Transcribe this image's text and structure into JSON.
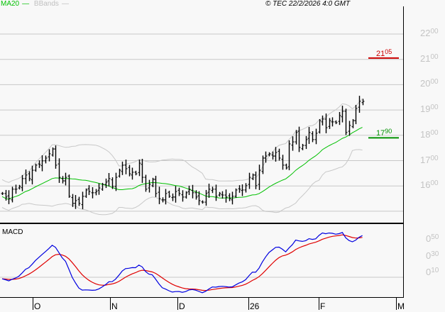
{
  "legend": {
    "ma20": "MA20",
    "bbands": "BBands"
  },
  "copyright": "© TEC 22/2/2026 4:0 GMT",
  "macd_label": "MACD",
  "colors": {
    "bars": "#000000",
    "ma20": "#00c000",
    "bbands": "#c8c8c8",
    "macd": "#0000e0",
    "signal": "#e00000",
    "resistance": "#cc0000",
    "support": "#009000",
    "grid": "#c8c8c8"
  },
  "chart_data": {
    "type": "line",
    "title": "",
    "price_axis": {
      "ylim": [
        14.7,
        22.7
      ],
      "ticks": [
        {
          "int": "22",
          "dec": "00",
          "v": 22
        },
        {
          "int": "21",
          "dec": "00",
          "v": 21
        },
        {
          "int": "20",
          "dec": "00",
          "v": 20
        },
        {
          "int": "19",
          "dec": "00",
          "v": 19
        },
        {
          "int": "18",
          "dec": "00",
          "v": 18
        },
        {
          "int": "17",
          "dec": "00",
          "v": 17
        },
        {
          "int": "16",
          "dec": "00",
          "v": 16
        }
      ],
      "grid": true
    },
    "macd_axis": {
      "ticks": [
        {
          "int": "0",
          "dec": "50",
          "v": 0.5
        },
        {
          "int": "0",
          "dec": "30",
          "v": 0.3
        },
        {
          "int": "0",
          "dec": "10",
          "v": 0.1
        }
      ]
    },
    "x_ticks": [
      "O",
      "N",
      "D",
      "26",
      "F",
      "M"
    ],
    "levels": [
      {
        "name": "resistance",
        "value": 21.05,
        "int": "21",
        "dec": "05"
      },
      {
        "name": "support",
        "value": 17.9,
        "int": "17",
        "dec": "90"
      }
    ],
    "series": [
      {
        "name": "close",
        "values": [
          15.7,
          15.56,
          15.5,
          15.87,
          15.87,
          15.98,
          16.29,
          16.43,
          16.29,
          16.62,
          16.82,
          16.85,
          16.99,
          17.1,
          17.27,
          17.46,
          16.82,
          16.34,
          16.2,
          16.34,
          15.59,
          15.31,
          15.42,
          15.31,
          15.59,
          15.84,
          15.78,
          15.73,
          15.78,
          15.92,
          16.06,
          16.15,
          16.29,
          15.98,
          16.34,
          16.62,
          16.82,
          16.68,
          16.48,
          16.54,
          16.48,
          16.9,
          16.34,
          15.87,
          16.06,
          16.26,
          15.7,
          15.5,
          15.45,
          15.7,
          15.59,
          15.56,
          15.78,
          15.7,
          15.56,
          15.73,
          15.87,
          15.73,
          15.56,
          15.42,
          15.36,
          15.7,
          15.87,
          15.87,
          15.59,
          15.7,
          15.64,
          15.56,
          15.5,
          15.59,
          15.84,
          15.87,
          15.84,
          16.01,
          16.34,
          16.43,
          16.01,
          16.62,
          17.1,
          17.18,
          17.27,
          17.18,
          17.32,
          17.1,
          16.82,
          16.71,
          17.66,
          17.74,
          18.11,
          17.52,
          17.6,
          17.83,
          18.11,
          17.83,
          18.08,
          18.58,
          18.64,
          18.3,
          18.58,
          18.53,
          18.5,
          18.78,
          18.95,
          18.11,
          18.39,
          18.58,
          19.06,
          19.34,
          19.34
        ]
      }
    ]
  }
}
